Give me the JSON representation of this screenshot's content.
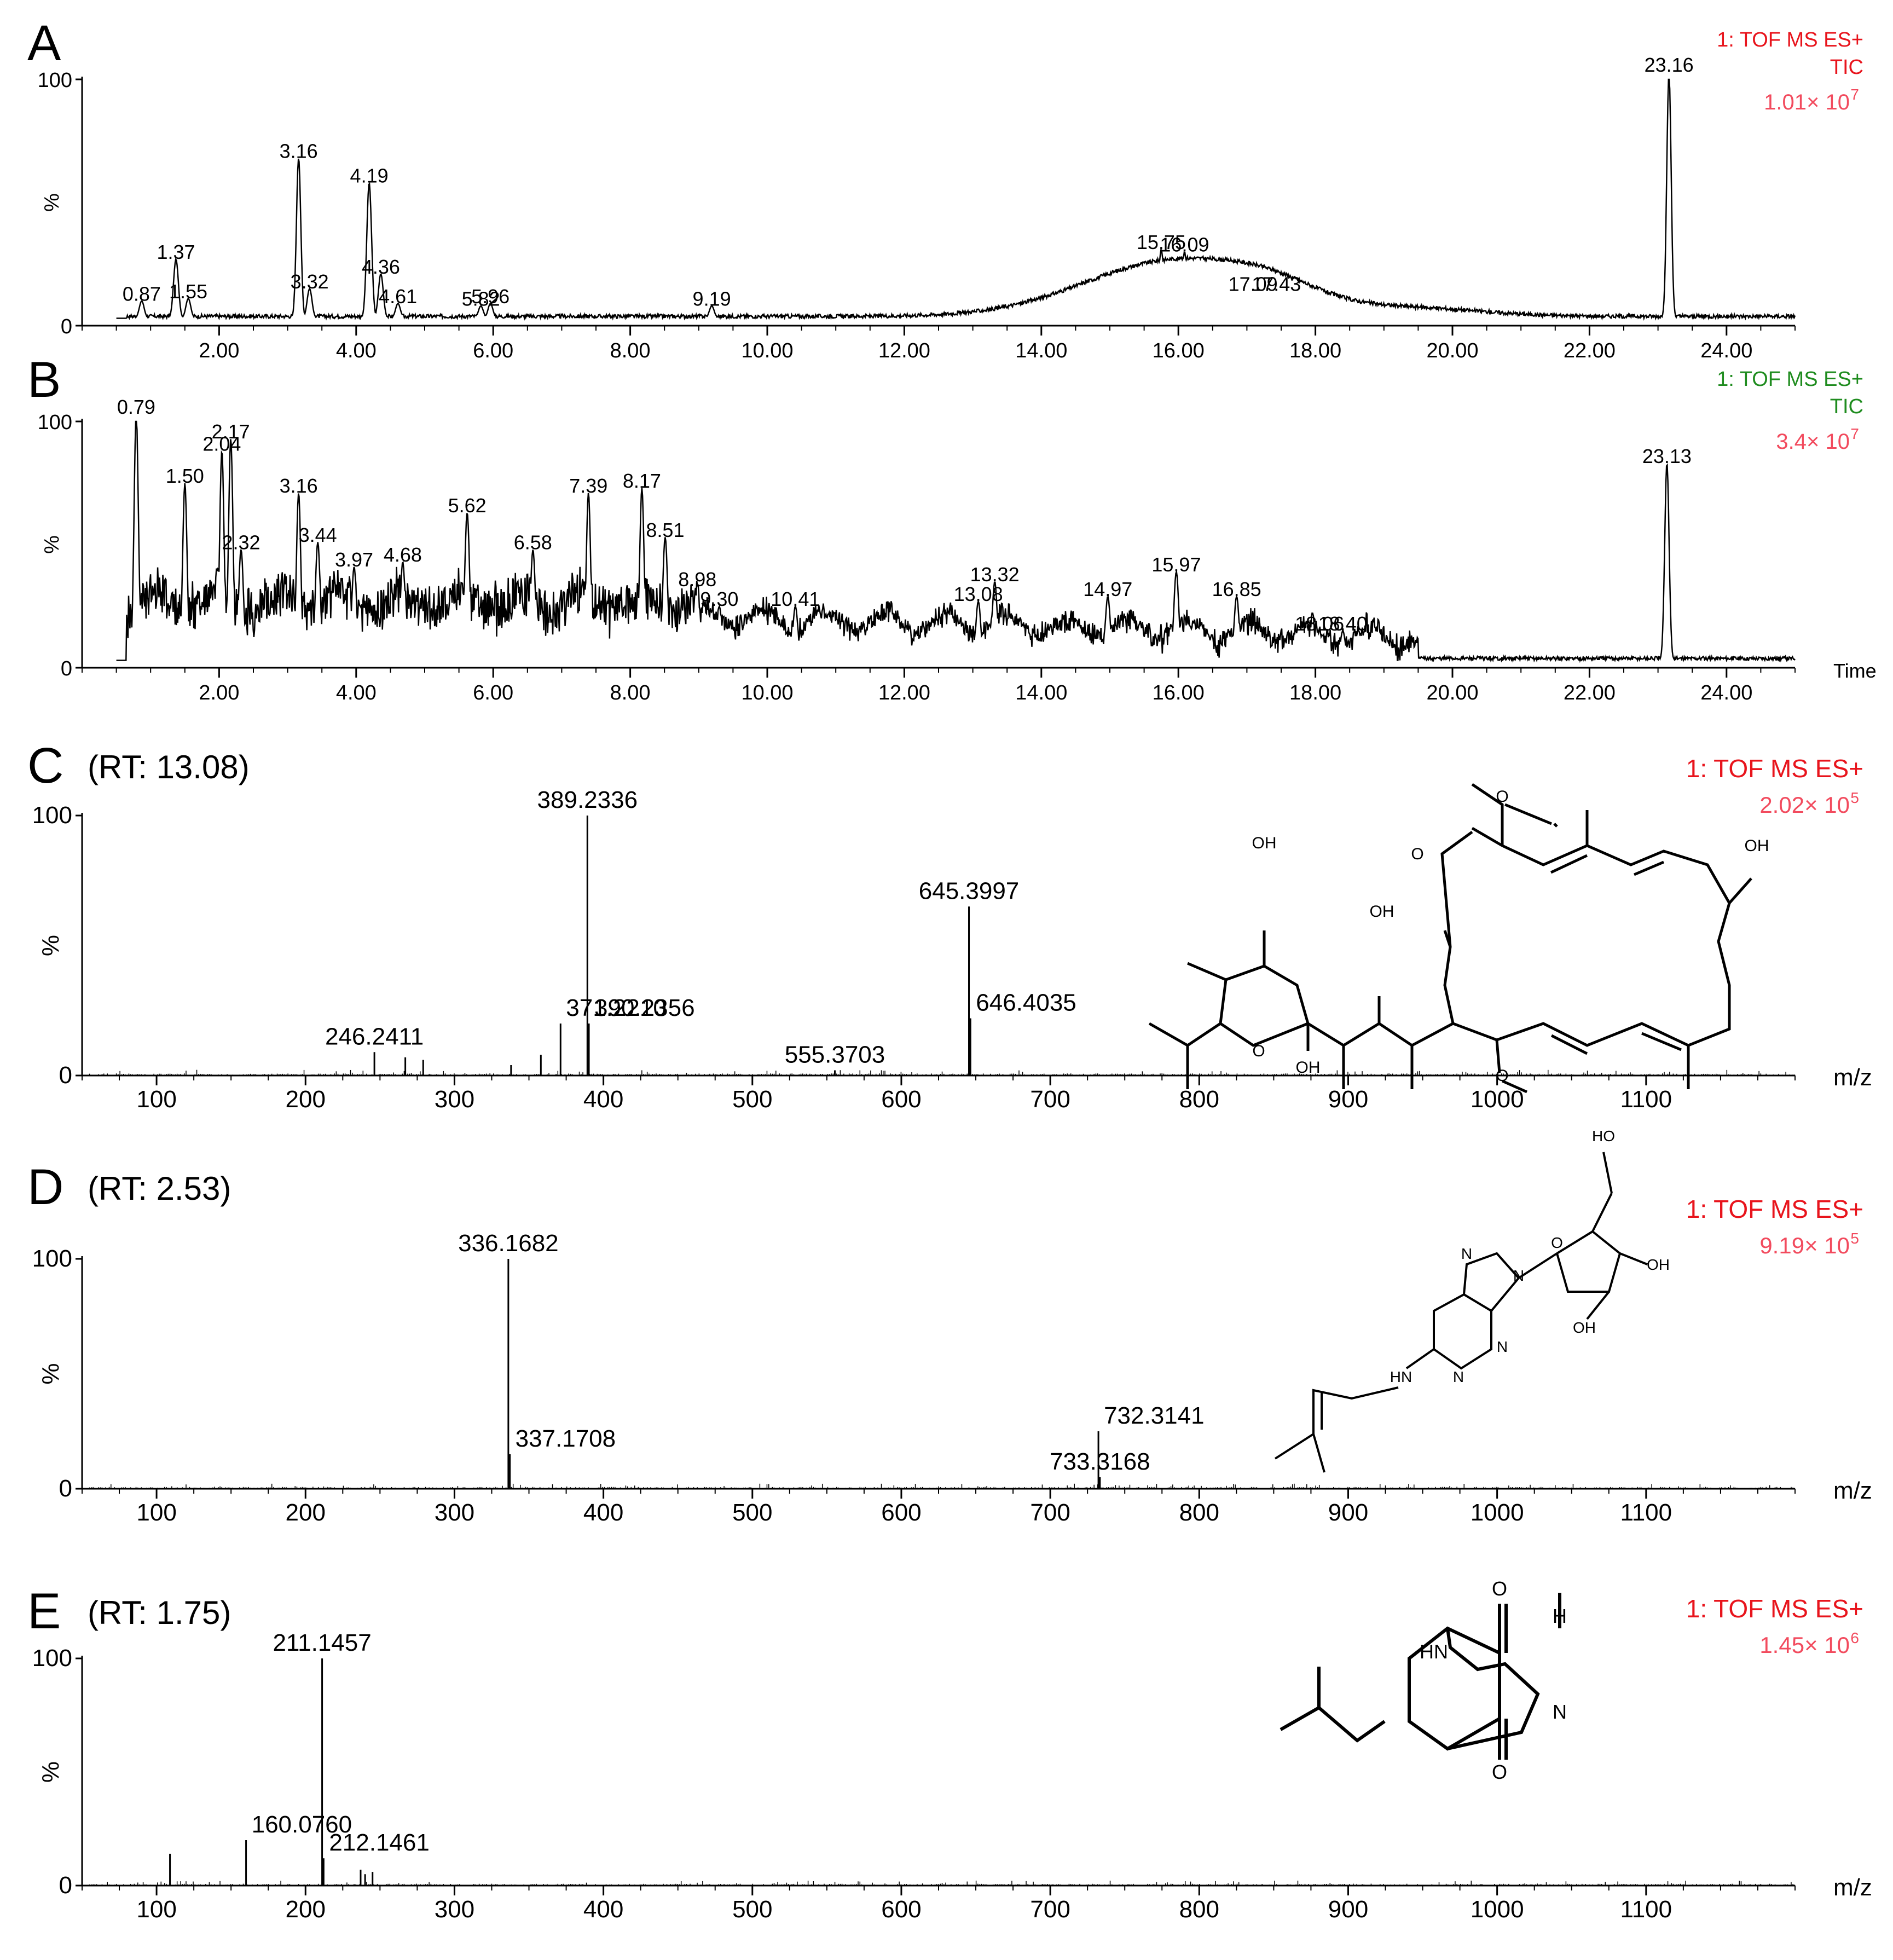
{
  "chart_data": [
    {
      "panel": "A",
      "type": "line",
      "subtitle": "",
      "header": [
        "1: TOF MS ES+",
        "TIC"
      ],
      "intensity": "1.01× 10",
      "intensity_exp": "7",
      "xlabel": "",
      "ylabel": "%",
      "xlim": [
        0,
        25
      ],
      "ylim": [
        0,
        100
      ],
      "x_ticks": [
        "2.00",
        "4.00",
        "6.00",
        "8.00",
        "10.00",
        "12.00",
        "14.00",
        "16.00",
        "18.00",
        "20.00",
        "22.00",
        "24.00"
      ],
      "y_ticks": [
        "0",
        "100"
      ],
      "peaks": [
        {
          "x": 0.87,
          "y": 7,
          "label": "0.87"
        },
        {
          "x": 1.37,
          "y": 24,
          "label": "1.37"
        },
        {
          "x": 1.55,
          "y": 8,
          "label": "1.55"
        },
        {
          "x": 3.16,
          "y": 65,
          "label": "3.16"
        },
        {
          "x": 3.32,
          "y": 12,
          "label": "3.32"
        },
        {
          "x": 4.19,
          "y": 55,
          "label": "4.19"
        },
        {
          "x": 4.36,
          "y": 18,
          "label": "4.36"
        },
        {
          "x": 4.61,
          "y": 6,
          "label": "4.61"
        },
        {
          "x": 5.82,
          "y": 5,
          "label": "5.82"
        },
        {
          "x": 5.96,
          "y": 6,
          "label": "5.96"
        },
        {
          "x": 9.19,
          "y": 5,
          "label": "9.19"
        },
        {
          "x": 15.75,
          "y": 28,
          "label": "15.75"
        },
        {
          "x": 16.09,
          "y": 27,
          "label": "16.09"
        },
        {
          "x": 17.09,
          "y": 11,
          "label": "17.09"
        },
        {
          "x": 17.43,
          "y": 11,
          "label": "17.43"
        },
        {
          "x": 23.16,
          "y": 100,
          "label": "23.16"
        }
      ],
      "humps": [
        {
          "c": 16.0,
          "w": 1.9,
          "h": 23
        },
        {
          "c": 17.4,
          "w": 0.9,
          "h": 5
        },
        {
          "c": 19.5,
          "w": 1.4,
          "h": 3
        }
      ],
      "baseline": 3
    },
    {
      "panel": "B",
      "type": "line",
      "subtitle": "",
      "header": [
        "1: TOF MS ES+",
        "TIC"
      ],
      "intensity": "3.4× 10",
      "intensity_exp": "7",
      "xlabel": "Time",
      "ylabel": "%",
      "xlim": [
        0,
        25
      ],
      "ylim": [
        0,
        100
      ],
      "x_ticks": [
        "2.00",
        "4.00",
        "6.00",
        "8.00",
        "10.00",
        "12.00",
        "14.00",
        "16.00",
        "18.00",
        "20.00",
        "22.00",
        "24.00"
      ],
      "y_ticks": [
        "0",
        "100"
      ],
      "peaks": [
        {
          "x": 0.79,
          "y": 100,
          "label": "0.79"
        },
        {
          "x": 1.5,
          "y": 72,
          "label": "1.50"
        },
        {
          "x": 2.04,
          "y": 85,
          "label": "2.04"
        },
        {
          "x": 2.17,
          "y": 90,
          "label": "2.17"
        },
        {
          "x": 2.32,
          "y": 45,
          "label": "2.32"
        },
        {
          "x": 3.16,
          "y": 68,
          "label": "3.16"
        },
        {
          "x": 3.44,
          "y": 48,
          "label": "3.44"
        },
        {
          "x": 3.97,
          "y": 38,
          "label": "3.97"
        },
        {
          "x": 4.68,
          "y": 40,
          "label": "4.68"
        },
        {
          "x": 5.62,
          "y": 60,
          "label": "5.62"
        },
        {
          "x": 6.58,
          "y": 45,
          "label": "6.58"
        },
        {
          "x": 7.39,
          "y": 68,
          "label": "7.39"
        },
        {
          "x": 8.17,
          "y": 70,
          "label": "8.17"
        },
        {
          "x": 8.51,
          "y": 50,
          "label": "8.51"
        },
        {
          "x": 8.98,
          "y": 30,
          "label": "8.98"
        },
        {
          "x": 9.3,
          "y": 22,
          "label": "9.30"
        },
        {
          "x": 10.41,
          "y": 22,
          "label": "10.41"
        },
        {
          "x": 13.08,
          "y": 24,
          "label": "13.08"
        },
        {
          "x": 13.32,
          "y": 32,
          "label": "13.32"
        },
        {
          "x": 14.97,
          "y": 26,
          "label": "14.97"
        },
        {
          "x": 15.97,
          "y": 36,
          "label": "15.97"
        },
        {
          "x": 16.85,
          "y": 26,
          "label": "16.85"
        },
        {
          "x": 18.06,
          "y": 12,
          "label": "18.06"
        },
        {
          "x": 18.4,
          "y": 12,
          "label": "18.40"
        },
        {
          "x": 23.13,
          "y": 80,
          "label": "23.13"
        }
      ],
      "humps": [],
      "baseline": 3
    },
    {
      "panel": "C",
      "subtitle": "(RT:  13.08)",
      "type": "bar",
      "header": [
        "1: TOF MS ES+"
      ],
      "intensity": "2.02× 10",
      "intensity_exp": "5",
      "xlabel": "m/z",
      "ylabel": "%",
      "xlim": [
        50,
        1200
      ],
      "ylim": [
        0,
        100
      ],
      "x_ticks": [
        "100",
        "200",
        "300",
        "400",
        "500",
        "600",
        "700",
        "800",
        "900",
        "1000",
        "1100"
      ],
      "y_ticks": [
        "0",
        "100"
      ],
      "peaks": [
        {
          "x": 389.2336,
          "y": 100,
          "label": "389.2336"
        },
        {
          "x": 645.3997,
          "y": 65,
          "label": "645.3997"
        },
        {
          "x": 390.2356,
          "y": 20,
          "label": "390.2356"
        },
        {
          "x": 371.221,
          "y": 20,
          "label": "371.2210"
        },
        {
          "x": 646.4035,
          "y": 22,
          "label": "646.4035"
        },
        {
          "x": 246.2411,
          "y": 9,
          "label": "246.2411"
        },
        {
          "x": 555.3703,
          "y": 2,
          "label": "555.3703"
        },
        {
          "x": 267,
          "y": 7,
          "label": ""
        },
        {
          "x": 279,
          "y": 6,
          "label": ""
        },
        {
          "x": 358,
          "y": 8,
          "label": ""
        },
        {
          "x": 338,
          "y": 4,
          "label": ""
        }
      ]
    },
    {
      "panel": "D",
      "subtitle": "(RT:  2.53)",
      "type": "bar",
      "header": [
        "1: TOF MS ES+"
      ],
      "intensity": "9.19× 10",
      "intensity_exp": "5",
      "xlabel": "m/z",
      "ylabel": "%",
      "xlim": [
        50,
        1200
      ],
      "ylim": [
        0,
        100
      ],
      "x_ticks": [
        "100",
        "200",
        "300",
        "400",
        "500",
        "600",
        "700",
        "800",
        "900",
        "1000",
        "1100"
      ],
      "y_ticks": [
        "0",
        "100"
      ],
      "peaks": [
        {
          "x": 336.1682,
          "y": 100,
          "label": "336.1682"
        },
        {
          "x": 337.1708,
          "y": 15,
          "label": "337.1708"
        },
        {
          "x": 732.3141,
          "y": 25,
          "label": "732.3141"
        },
        {
          "x": 733.3168,
          "y": 5,
          "label": "733.3168"
        }
      ]
    },
    {
      "panel": "E",
      "subtitle": "(RT:  1.75)",
      "type": "bar",
      "header": [
        "1: TOF MS ES+"
      ],
      "intensity": "1.45× 10",
      "intensity_exp": "6",
      "xlabel": "m/z",
      "ylabel": "%",
      "xlim": [
        50,
        1200
      ],
      "ylim": [
        0,
        100
      ],
      "x_ticks": [
        "100",
        "200",
        "300",
        "400",
        "500",
        "600",
        "700",
        "800",
        "900",
        "1000",
        "1100"
      ],
      "y_ticks": [
        "0",
        "100"
      ],
      "peaks": [
        {
          "x": 211.1457,
          "y": 100,
          "label": "211.1457"
        },
        {
          "x": 160.076,
          "y": 20,
          "label": "160.0760"
        },
        {
          "x": 212.1461,
          "y": 12,
          "label": "212.1461"
        },
        {
          "x": 109,
          "y": 14,
          "label": ""
        },
        {
          "x": 237,
          "y": 7,
          "label": ""
        },
        {
          "x": 240,
          "y": 5,
          "label": ""
        },
        {
          "x": 245,
          "y": 6,
          "label": ""
        }
      ]
    }
  ],
  "structures": {
    "C": {
      "atoms": [
        "OH",
        "OH",
        "OH",
        "OH",
        "O",
        "O",
        "O",
        "O"
      ]
    },
    "D": {
      "atoms": [
        "HO",
        "O",
        "N",
        "N",
        "OH",
        "OH",
        "HN",
        "N",
        "N"
      ]
    },
    "E": {
      "atoms": [
        "O",
        "H",
        "HN",
        "N",
        "O"
      ]
    }
  },
  "colors": {
    "header_red": "#e8141c",
    "header_green": "#1f8c1f",
    "intensity_pink": "#f24b5e",
    "ink": "#000000"
  }
}
